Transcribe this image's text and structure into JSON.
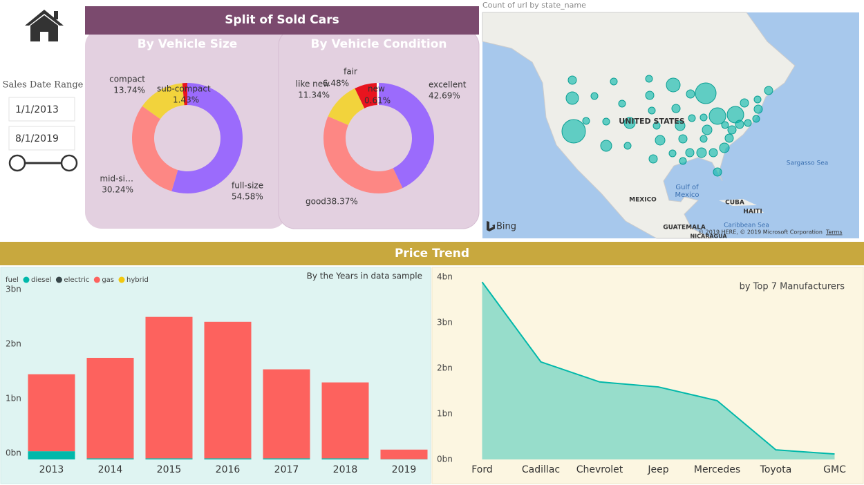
{
  "filter": {
    "label": "Sales Date Range",
    "start": "1/1/2013",
    "end": "8/1/2019"
  },
  "split": {
    "title": "Split of Sold Cars"
  },
  "trend": {
    "title": "Price Trend"
  },
  "map": {
    "title": "Count of url by state_name",
    "labels": [
      "UNITED STATES",
      "Gulf of Mexico",
      "MEXICO",
      "CUBA",
      "HAITI",
      "GUATEMALA",
      "NICARAGUA",
      "Caribbean Sea",
      "Sargasso Sea"
    ],
    "brand": "Bing",
    "attribution": "© 2019 HERE, © 2019 Microsoft Corporation",
    "terms": "Terms"
  },
  "chart_data": [
    {
      "type": "donut",
      "title": "By Vehicle Size",
      "categories": [
        "full-size",
        "mid-si…",
        "compact",
        "sub-compact"
      ],
      "values": [
        54.58,
        30.24,
        13.74,
        1.43
      ],
      "value_labels": [
        "54.58%",
        "30.24%",
        "13.74%",
        "1.43%"
      ],
      "colors": [
        "#9b6bfc",
        "#fd8784",
        "#f2d33c",
        "#e8141f"
      ]
    },
    {
      "type": "donut",
      "title": "By Vehicle Condition",
      "categories": [
        "excellent",
        "good",
        "like new",
        "fair",
        "new"
      ],
      "values": [
        42.69,
        38.37,
        11.34,
        6.48,
        0.61
      ],
      "value_labels": [
        "42.69%",
        "38.37%",
        "11.34%",
        "6.48%",
        "0.61%"
      ],
      "colors": [
        "#9b6bfc",
        "#fd8784",
        "#f2d33c",
        "#e8141f",
        "#ffffff"
      ]
    },
    {
      "type": "bar",
      "subtitle": "By the Years in data sample",
      "legend_title": "fuel",
      "categories": [
        "2013",
        "2014",
        "2015",
        "2016",
        "2017",
        "2018",
        "2019"
      ],
      "series": [
        {
          "name": "diesel",
          "color": "#01b8aa",
          "values": [
            150000000,
            20000000,
            20000000,
            20000000,
            20000000,
            20000000,
            5000000
          ]
        },
        {
          "name": "electric",
          "color": "#374649",
          "values": [
            0,
            0,
            0,
            0,
            0,
            0,
            0
          ]
        },
        {
          "name": "gas",
          "color": "#fd625e",
          "values": [
            1410000000,
            1840000000,
            2590000000,
            2500000000,
            1630000000,
            1390000000,
            175000000
          ]
        },
        {
          "name": "hybrid",
          "color": "#f2c80f",
          "values": [
            0,
            0,
            0,
            0,
            0,
            0,
            0
          ]
        }
      ],
      "ylim": [
        0,
        3150000000
      ],
      "yticks": [
        {
          "value": 0,
          "label": "0bn"
        },
        {
          "value": 1000000000,
          "label": "1bn"
        },
        {
          "value": 2000000000,
          "label": "2bn"
        },
        {
          "value": 3000000000,
          "label": "3bn"
        }
      ]
    },
    {
      "type": "area",
      "subtitle": "by Top 7 Manufacturers",
      "color": "#01b8aa",
      "categories": [
        "Ford",
        "Cadillac",
        "Chevrolet",
        "Jeep",
        "Mercedes",
        "Toyota",
        "GMC"
      ],
      "values": [
        3890000000,
        2140000000,
        1700000000,
        1590000000,
        1290000000,
        210000000,
        120000000
      ],
      "ylim": [
        0,
        4000000000
      ],
      "yticks": [
        {
          "value": 0,
          "label": "0bn"
        },
        {
          "value": 1000000000,
          "label": "1bn"
        },
        {
          "value": 2000000000,
          "label": "2bn"
        },
        {
          "value": 3000000000,
          "label": "3bn"
        },
        {
          "value": 4000000000,
          "label": "4bn"
        }
      ]
    }
  ]
}
